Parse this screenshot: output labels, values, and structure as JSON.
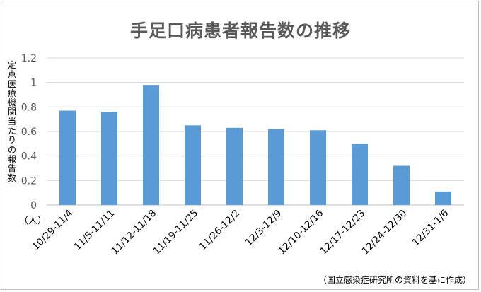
{
  "chart_data": {
    "type": "bar",
    "title": "手足口病患者報告数の推移",
    "ylabel": "定点医療機関当たりの報告数",
    "yunit": "（人）",
    "categories": [
      "10/29-11/4",
      "11/5-11/11",
      "11/12-11/18",
      "11/19-11/25",
      "11/26-12/2",
      "12/3-12/9",
      "12/10-12/16",
      "12/17-12/23",
      "12/24-12/30",
      "12/31-1/6"
    ],
    "values": [
      0.77,
      0.76,
      0.98,
      0.65,
      0.63,
      0.62,
      0.61,
      0.5,
      0.32,
      0.11
    ],
    "ylim": [
      0,
      1.2
    ],
    "yticks": [
      "0",
      "0.2",
      "0.4",
      "0.6",
      "0.8",
      "1",
      "1.2"
    ],
    "grid": true,
    "bar_color": "#5b9bd5",
    "source": "（国立感染症研究所の資料を基に作成）"
  }
}
